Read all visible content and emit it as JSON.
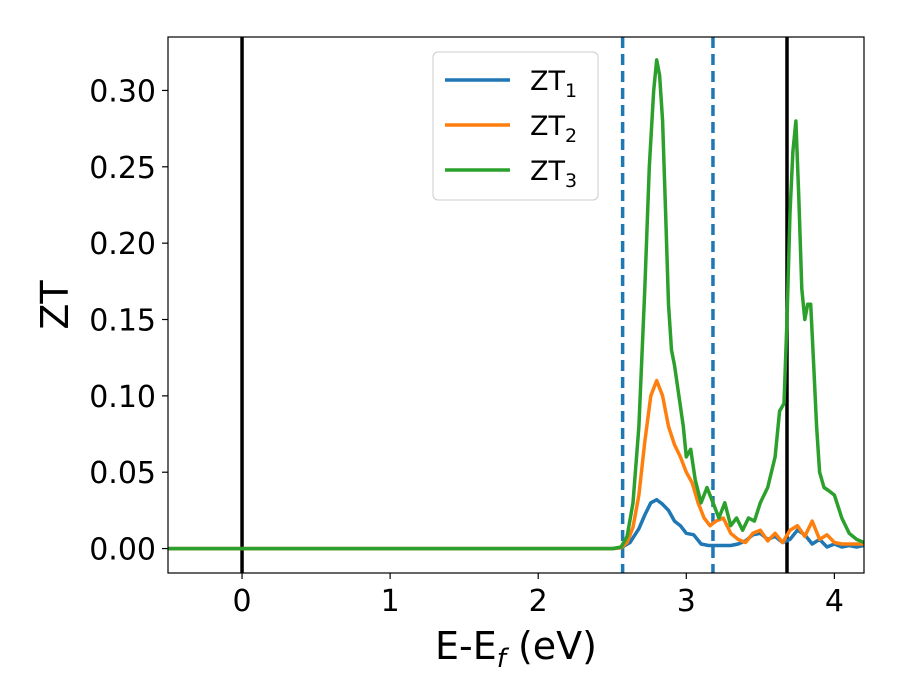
{
  "chart_data": {
    "type": "line",
    "xlabel": {
      "main": "E-E",
      "sub": "f",
      "suffix": " (eV)"
    },
    "ylabel": "ZT",
    "xlim": [
      -0.5,
      4.2
    ],
    "ylim": [
      -0.016,
      0.335
    ],
    "xticks": [
      0,
      1,
      2,
      3,
      4
    ],
    "yticks": [
      0.0,
      0.05,
      0.1,
      0.15,
      0.2,
      0.25,
      0.3
    ],
    "ytick_labels": [
      "0.00",
      "0.05",
      "0.10",
      "0.15",
      "0.20",
      "0.25",
      "0.30"
    ],
    "grid": false,
    "legend": {
      "placement": "top-center"
    },
    "vlines": [
      {
        "x": 0.0,
        "style": "solid",
        "color": "#000000"
      },
      {
        "x": 2.57,
        "style": "dashed",
        "color": "#1f77b4"
      },
      {
        "x": 3.18,
        "style": "dashed",
        "color": "#1f77b4"
      },
      {
        "x": 3.68,
        "style": "solid",
        "color": "#000000"
      }
    ],
    "series": [
      {
        "name": "ZT",
        "sub": "1",
        "color": "#1f77b4",
        "x": [
          -0.5,
          2.5,
          2.56,
          2.62,
          2.68,
          2.72,
          2.76,
          2.8,
          2.84,
          2.88,
          2.92,
          2.96,
          3.0,
          3.05,
          3.1,
          3.15,
          3.2,
          3.25,
          3.3,
          3.35,
          3.4,
          3.45,
          3.5,
          3.55,
          3.6,
          3.65,
          3.7,
          3.75,
          3.8,
          3.85,
          3.9,
          3.95,
          4.0,
          4.05,
          4.1,
          4.15,
          4.2
        ],
        "y": [
          0,
          0,
          0.0005,
          0.004,
          0.013,
          0.022,
          0.03,
          0.032,
          0.029,
          0.025,
          0.018,
          0.015,
          0.01,
          0.009,
          0.003,
          0.002,
          0.002,
          0.002,
          0.002,
          0.003,
          0.005,
          0.009,
          0.01,
          0.006,
          0.008,
          0.004,
          0.006,
          0.012,
          0.009,
          0.003,
          0.006,
          0.001,
          0.003,
          0.001,
          0.002,
          0.001,
          0.002
        ]
      },
      {
        "name": "ZT",
        "sub": "2",
        "color": "#ff7f0e",
        "x": [
          -0.5,
          2.5,
          2.56,
          2.6,
          2.64,
          2.68,
          2.72,
          2.76,
          2.8,
          2.84,
          2.88,
          2.92,
          2.96,
          3.0,
          3.04,
          3.08,
          3.12,
          3.16,
          3.2,
          3.25,
          3.3,
          3.35,
          3.4,
          3.45,
          3.5,
          3.55,
          3.6,
          3.65,
          3.7,
          3.75,
          3.8,
          3.85,
          3.9,
          3.95,
          4.0,
          4.05,
          4.1,
          4.15,
          4.2
        ],
        "y": [
          0,
          0,
          0.0005,
          0.004,
          0.014,
          0.035,
          0.07,
          0.1,
          0.11,
          0.1,
          0.08,
          0.068,
          0.06,
          0.05,
          0.043,
          0.03,
          0.02,
          0.015,
          0.018,
          0.02,
          0.01,
          0.006,
          0.004,
          0.01,
          0.012,
          0.005,
          0.01,
          0.004,
          0.012,
          0.015,
          0.008,
          0.018,
          0.006,
          0.009,
          0.004,
          0.003,
          0.003,
          0.003,
          0.003
        ]
      },
      {
        "name": "ZT",
        "sub": "3",
        "color": "#2ca02c",
        "x": [
          -0.5,
          2.5,
          2.56,
          2.6,
          2.64,
          2.68,
          2.72,
          2.75,
          2.78,
          2.8,
          2.82,
          2.84,
          2.86,
          2.88,
          2.9,
          2.92,
          2.95,
          2.98,
          3.0,
          3.03,
          3.06,
          3.1,
          3.14,
          3.18,
          3.22,
          3.26,
          3.3,
          3.34,
          3.38,
          3.42,
          3.46,
          3.5,
          3.55,
          3.6,
          3.63,
          3.66,
          3.68,
          3.7,
          3.72,
          3.74,
          3.76,
          3.78,
          3.8,
          3.82,
          3.84,
          3.86,
          3.88,
          3.9,
          3.93,
          3.96,
          4.0,
          4.05,
          4.1,
          4.15,
          4.2
        ],
        "y": [
          0,
          0,
          0.001,
          0.008,
          0.03,
          0.08,
          0.17,
          0.25,
          0.3,
          0.32,
          0.31,
          0.28,
          0.22,
          0.16,
          0.13,
          0.12,
          0.1,
          0.08,
          0.06,
          0.065,
          0.045,
          0.03,
          0.04,
          0.03,
          0.02,
          0.03,
          0.015,
          0.02,
          0.012,
          0.02,
          0.018,
          0.03,
          0.04,
          0.06,
          0.09,
          0.095,
          0.15,
          0.22,
          0.26,
          0.28,
          0.23,
          0.17,
          0.15,
          0.16,
          0.16,
          0.12,
          0.08,
          0.05,
          0.04,
          0.038,
          0.035,
          0.02,
          0.01,
          0.006,
          0.004
        ]
      }
    ]
  }
}
